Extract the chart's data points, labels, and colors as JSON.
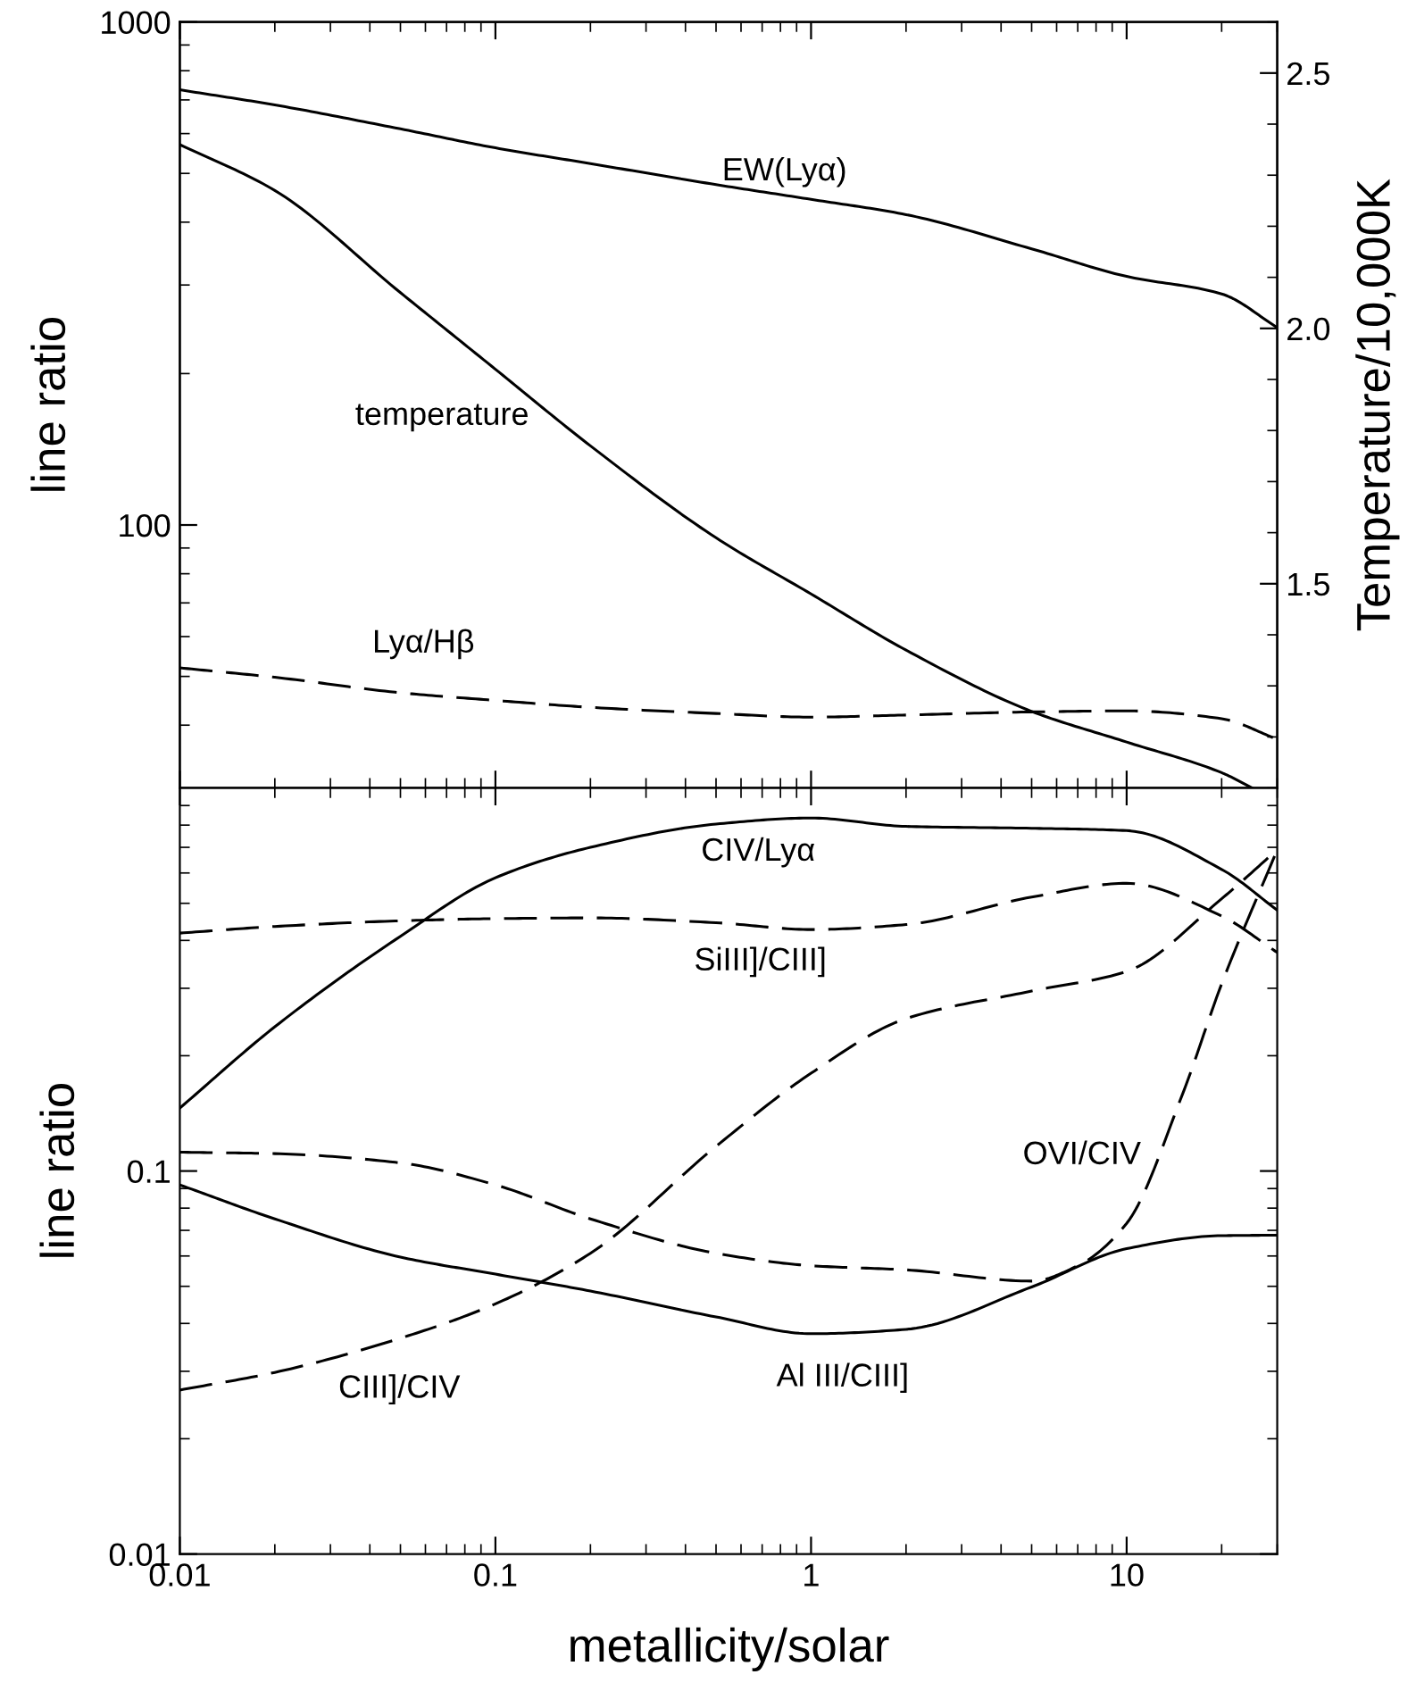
{
  "chart_data": [
    {
      "type": "line",
      "ylabel": "line ratio",
      "y2label": "Temperature/10,000K",
      "log": "xy",
      "xlim": [
        0.01,
        30
      ],
      "ylim": [
        30,
        1000
      ],
      "yticks": [
        100,
        1000
      ],
      "y2lim": [
        1.1,
        2.6
      ],
      "y2ticks": [
        {
          "value": 1.5,
          "label": "1.5"
        },
        {
          "value": 2,
          "label": "2.0"
        },
        {
          "value": 2.5,
          "label": "2.5"
        }
      ],
      "tick_labels": "y",
      "grid": false,
      "legend": false,
      "marker": "none",
      "color": "#000000",
      "x": [
        0.01,
        0.02,
        0.05,
        0.1,
        0.2,
        0.5,
        1,
        2,
        5,
        10,
        20,
        30
      ],
      "series": [
        {
          "name": "EW(Lyα)",
          "line_style": "solid",
          "values": [
            733,
            684,
            613,
            562,
            523,
            475,
            444,
            414,
            354,
            312,
            288,
            247
          ]
        },
        {
          "name": "temperature",
          "line_style": "solid",
          "axis": "y2",
          "x": [
            0.01,
            0.02,
            0.05,
            0.1,
            0.2,
            0.5,
            1,
            2,
            5,
            10,
            20,
            25
          ],
          "values": [
            2.36,
            2.27,
            2.07,
            1.92,
            1.77,
            1.59,
            1.48,
            1.37,
            1.25,
            1.19,
            1.13,
            1.1
          ]
        },
        {
          "name": "Lyα/Hβ",
          "line_style": "dashed",
          "values": [
            52.0,
            49.8,
            46.4,
            44.8,
            43.4,
            42.2,
            41.5,
            41.9,
            42.5,
            42.7,
            41.2,
            37.5
          ]
        }
      ]
    },
    {
      "type": "line",
      "xlabel": "metallicity/solar",
      "ylabel": "line ratio",
      "log": "xy",
      "xlim": [
        0.01,
        30
      ],
      "ylim": [
        0.01,
        1
      ],
      "xticks": [
        0.01,
        0.1,
        1,
        10
      ],
      "yticks": [
        0.01,
        0.1
      ],
      "grid": false,
      "legend": false,
      "marker": "none",
      "color": "#000000",
      "x": [
        0.01,
        0.02,
        0.05,
        0.1,
        0.2,
        0.5,
        1,
        2,
        5,
        10,
        20,
        30
      ],
      "series": [
        {
          "name": "CIV/Lyα",
          "line_style": "solid",
          "values": [
            0.146,
            0.238,
            0.41,
            0.583,
            0.7,
            0.805,
            0.835,
            0.794,
            0.785,
            0.774,
            0.613,
            0.48
          ]
        },
        {
          "name": "SiIII]/CIII]",
          "line_style": "dashed",
          "values": [
            0.418,
            0.435,
            0.45,
            0.456,
            0.458,
            0.445,
            0.427,
            0.44,
            0.519,
            0.564,
            0.463,
            0.372
          ]
        },
        {
          "name": "CIII]/CIV",
          "line_style": "dashed",
          "values": [
            0.0268,
            0.0298,
            0.0366,
            0.045,
            0.061,
            0.116,
            0.18,
            0.25,
            0.295,
            0.332,
            0.514,
            0.69
          ]
        },
        {
          "name": "OVI/CIV",
          "line_style": "dashed",
          "x": [
            0.01,
            0.02,
            0.05,
            0.1,
            0.2,
            0.5,
            1,
            2,
            5,
            7,
            10,
            15,
            20,
            30
          ],
          "values": [
            0.112,
            0.111,
            0.105,
            0.092,
            0.075,
            0.061,
            0.0566,
            0.0552,
            0.0516,
            0.0566,
            0.073,
            0.158,
            0.308,
            0.69
          ]
        },
        {
          "name": "Al III/CIII]",
          "line_style": "solid",
          "values": [
            0.092,
            0.075,
            0.0596,
            0.0538,
            0.0486,
            0.0416,
            0.0376,
            0.0386,
            0.0498,
            0.0627,
            0.0678,
            0.068
          ]
        }
      ]
    }
  ]
}
